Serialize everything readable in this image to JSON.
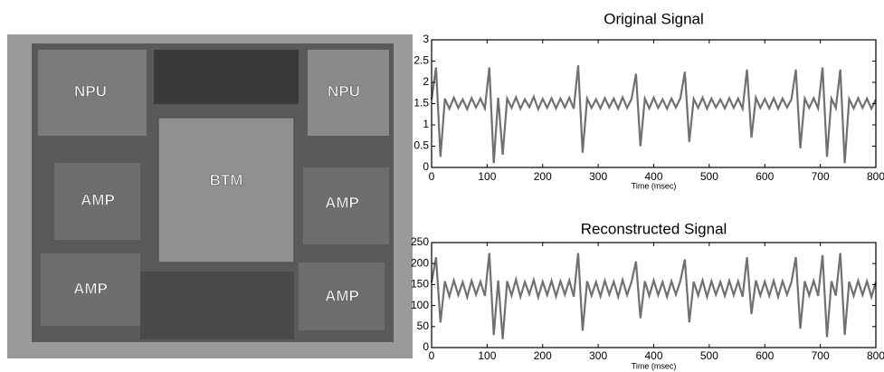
{
  "image": {
    "labels": [
      "NPU",
      "NPU",
      "BTM",
      "AMP",
      "AMP",
      "AMP",
      "AMP"
    ]
  },
  "chart_data": [
    {
      "type": "line",
      "title": "Original Signal",
      "x_label": "Time (msec)",
      "color": "#707070",
      "xlim": [
        0,
        800
      ],
      "xticks": [
        0,
        100,
        200,
        300,
        400,
        500,
        600,
        700,
        800
      ],
      "ylim": [
        0,
        3
      ],
      "yticks": [
        0,
        0.5,
        1,
        1.5,
        2,
        2.5,
        3
      ],
      "x": [
        0,
        8,
        16,
        24,
        32,
        40,
        48,
        56,
        64,
        72,
        80,
        88,
        96,
        104,
        112,
        120,
        128,
        136,
        144,
        152,
        160,
        168,
        176,
        184,
        192,
        200,
        208,
        216,
        224,
        232,
        240,
        248,
        256,
        264,
        272,
        280,
        288,
        296,
        304,
        312,
        320,
        328,
        336,
        344,
        352,
        360,
        368,
        376,
        384,
        392,
        400,
        408,
        416,
        424,
        432,
        440,
        448,
        456,
        464,
        472,
        480,
        488,
        496,
        504,
        512,
        520,
        528,
        536,
        544,
        552,
        560,
        568,
        576,
        584,
        592,
        600,
        608,
        616,
        624,
        632,
        640,
        648,
        656,
        664,
        672,
        680,
        688,
        696,
        704,
        712,
        720,
        728,
        736,
        744,
        752,
        760,
        768,
        776,
        784,
        792,
        800
      ],
      "values": [
        1.6,
        2.35,
        0.25,
        1.62,
        1.38,
        1.64,
        1.4,
        1.6,
        1.37,
        1.63,
        1.41,
        1.62,
        1.39,
        2.35,
        0.1,
        1.64,
        0.3,
        1.62,
        1.4,
        1.65,
        1.38,
        1.6,
        1.42,
        1.66,
        1.37,
        1.61,
        1.4,
        1.63,
        1.39,
        1.62,
        1.41,
        1.64,
        1.38,
        2.4,
        0.35,
        1.62,
        1.4,
        1.6,
        1.39,
        1.63,
        1.41,
        1.62,
        1.38,
        1.65,
        1.4,
        1.61,
        2.2,
        0.5,
        1.62,
        1.39,
        1.64,
        1.4,
        1.6,
        1.38,
        1.62,
        1.41,
        1.63,
        2.25,
        0.6,
        1.61,
        1.4,
        1.64,
        1.38,
        1.62,
        1.41,
        1.6,
        1.39,
        1.63,
        1.4,
        1.62,
        1.38,
        2.3,
        0.7,
        1.64,
        1.4,
        1.61,
        1.39,
        1.63,
        1.38,
        1.62,
        1.41,
        1.6,
        2.3,
        0.45,
        1.62,
        1.4,
        1.63,
        1.39,
        2.35,
        0.25,
        1.62,
        1.4,
        2.3,
        0.1,
        1.61,
        1.39,
        1.63,
        1.4,
        1.62,
        1.38,
        1.6
      ]
    },
    {
      "type": "line",
      "title": "Reconstructed Signal",
      "x_label": "Time (msec)",
      "color": "#707070",
      "xlim": [
        0,
        800
      ],
      "xticks": [
        0,
        100,
        200,
        300,
        400,
        500,
        600,
        700,
        800
      ],
      "ylim": [
        0,
        250
      ],
      "yticks": [
        0,
        50,
        100,
        150,
        200,
        250
      ],
      "x": [
        0,
        8,
        16,
        24,
        32,
        40,
        48,
        56,
        64,
        72,
        80,
        88,
        96,
        104,
        112,
        120,
        128,
        136,
        144,
        152,
        160,
        168,
        176,
        184,
        192,
        200,
        208,
        216,
        224,
        232,
        240,
        248,
        256,
        264,
        272,
        280,
        288,
        296,
        304,
        312,
        320,
        328,
        336,
        344,
        352,
        360,
        368,
        376,
        384,
        392,
        400,
        408,
        416,
        424,
        432,
        440,
        448,
        456,
        464,
        472,
        480,
        488,
        496,
        504,
        512,
        520,
        528,
        536,
        544,
        552,
        560,
        568,
        576,
        584,
        592,
        600,
        608,
        616,
        624,
        632,
        640,
        648,
        656,
        664,
        672,
        680,
        688,
        696,
        704,
        712,
        720,
        728,
        736,
        744,
        752,
        760,
        768,
        776,
        784,
        792,
        800
      ],
      "values": [
        155,
        215,
        60,
        158,
        122,
        160,
        125,
        156,
        120,
        159,
        126,
        157,
        123,
        225,
        30,
        160,
        20,
        158,
        124,
        162,
        121,
        156,
        127,
        161,
        120,
        157,
        125,
        159,
        122,
        158,
        126,
        160,
        121,
        225,
        40,
        158,
        124,
        156,
        122,
        159,
        126,
        157,
        121,
        161,
        125,
        157,
        205,
        70,
        158,
        123,
        160,
        125,
        156,
        121,
        158,
        126,
        159,
        210,
        60,
        157,
        124,
        160,
        121,
        158,
        126,
        156,
        123,
        159,
        125,
        158,
        121,
        215,
        80,
        160,
        124,
        157,
        123,
        159,
        121,
        158,
        126,
        156,
        215,
        45,
        158,
        124,
        159,
        123,
        220,
        25,
        158,
        124,
        225,
        30,
        157,
        123,
        159,
        125,
        158,
        121,
        156
      ]
    }
  ]
}
